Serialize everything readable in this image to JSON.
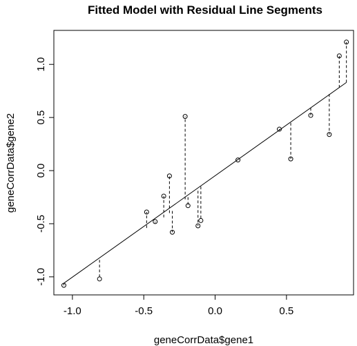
{
  "chart_data": {
    "type": "scatter",
    "title": "Fitted Model with Residual Line Segments",
    "xlabel": "geneCorrData$gene1",
    "ylabel": "geneCorrData$gene2",
    "xlim": [
      -1.13,
      0.97
    ],
    "ylim": [
      -1.17,
      1.32
    ],
    "x_ticks": [
      -1.0,
      -0.5,
      0.0,
      0.5
    ],
    "x_tick_labels": [
      "-1.0",
      "-0.5",
      "0.0",
      "0.5"
    ],
    "y_ticks": [
      -1.0,
      -0.5,
      0.0,
      0.5,
      1.0
    ],
    "y_tick_labels": [
      "-1.0",
      "-0.5",
      "0.0",
      "0.5",
      "1.0"
    ],
    "grid": false,
    "points": [
      {
        "x": -1.06,
        "y": -1.08,
        "fitted": -1.06
      },
      {
        "x": -0.81,
        "y": -1.02,
        "fitted": -0.84
      },
      {
        "x": -0.48,
        "y": -0.39,
        "fitted": -0.54
      },
      {
        "x": -0.42,
        "y": -0.48,
        "fitted": -0.49
      },
      {
        "x": -0.36,
        "y": -0.24,
        "fitted": -0.44
      },
      {
        "x": -0.32,
        "y": -0.05,
        "fitted": -0.4
      },
      {
        "x": -0.3,
        "y": -0.58,
        "fitted": -0.38
      },
      {
        "x": -0.21,
        "y": 0.51,
        "fitted": -0.27
      },
      {
        "x": -0.19,
        "y": -0.33,
        "fitted": -0.25
      },
      {
        "x": -0.12,
        "y": -0.52,
        "fitted": -0.19
      },
      {
        "x": -0.1,
        "y": -0.47,
        "fitted": -0.15
      },
      {
        "x": 0.16,
        "y": 0.1,
        "fitted": 0.1
      },
      {
        "x": 0.45,
        "y": 0.39,
        "fitted": 0.38
      },
      {
        "x": 0.53,
        "y": 0.11,
        "fitted": 0.45
      },
      {
        "x": 0.67,
        "y": 0.52,
        "fitted": 0.59
      },
      {
        "x": 0.8,
        "y": 0.34,
        "fitted": 0.72
      },
      {
        "x": 0.87,
        "y": 1.08,
        "fitted": 0.78
      },
      {
        "x": 0.92,
        "y": 1.21,
        "fitted": 0.83
      }
    ],
    "fit_line": {
      "x": [
        -1.06,
        0.92
      ],
      "y": [
        -1.06,
        0.83
      ]
    }
  }
}
